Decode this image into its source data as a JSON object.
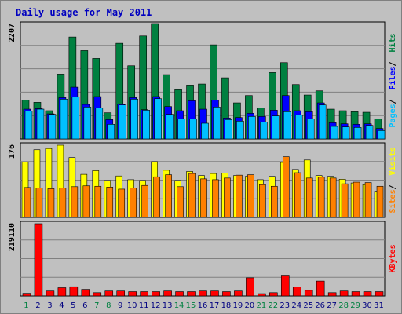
{
  "title": "Daily usage for May 2011",
  "colors": {
    "hits": "#008040",
    "files": "#0000ff",
    "pages": "#00c0ff",
    "visits": "#ffff00",
    "sites": "#ff8000",
    "kbytes": "#ff0000",
    "weekend_label": "#008040",
    "weekday_label": "#000080",
    "panel_bg": "#c0c0c0",
    "gridline": "#808080"
  },
  "chart_data": [
    {
      "type": "bar",
      "panel": "top",
      "max_label": "2207",
      "ylim": [
        0,
        2207
      ],
      "legend": [
        "Pages",
        "Files",
        "Hits"
      ],
      "categories": [
        "1",
        "2",
        "3",
        "4",
        "5",
        "6",
        "7",
        "8",
        "9",
        "10",
        "11",
        "12",
        "13",
        "14",
        "15",
        "16",
        "17",
        "18",
        "19",
        "20",
        "21",
        "22",
        "23",
        "24",
        "25",
        "26",
        "27",
        "28",
        "29",
        "30",
        "31"
      ],
      "series": [
        {
          "name": "Hits",
          "color": "#008040",
          "values": [
            740,
            700,
            540,
            1240,
            1950,
            1690,
            1540,
            500,
            1830,
            1400,
            1970,
            2207,
            1230,
            940,
            1030,
            1050,
            1800,
            1170,
            690,
            830,
            590,
            1270,
            1460,
            1040,
            840,
            920,
            570,
            540,
            520,
            510,
            380
          ]
        },
        {
          "name": "Files",
          "color": "#0000ff",
          "values": [
            570,
            580,
            480,
            790,
            990,
            660,
            810,
            370,
            670,
            790,
            560,
            810,
            620,
            540,
            730,
            570,
            740,
            400,
            410,
            490,
            430,
            550,
            830,
            540,
            520,
            690,
            310,
            290,
            280,
            290,
            200
          ]
        },
        {
          "name": "Pages",
          "color": "#00c0ff",
          "values": [
            530,
            570,
            470,
            760,
            800,
            610,
            590,
            280,
            650,
            760,
            550,
            770,
            470,
            380,
            380,
            300,
            610,
            370,
            340,
            430,
            320,
            440,
            520,
            460,
            380,
            650,
            240,
            230,
            220,
            260,
            160
          ]
        }
      ]
    },
    {
      "type": "bar",
      "panel": "middle",
      "max_label": "176",
      "ylim": [
        0,
        176
      ],
      "legend": [
        "Sites",
        "Visits"
      ],
      "categories": [
        "1",
        "2",
        "3",
        "4",
        "5",
        "6",
        "7",
        "8",
        "9",
        "10",
        "11",
        "12",
        "13",
        "14",
        "15",
        "16",
        "17",
        "18",
        "19",
        "20",
        "21",
        "22",
        "23",
        "24",
        "25",
        "26",
        "27",
        "28",
        "29",
        "30",
        "31"
      ],
      "series": [
        {
          "name": "Visits",
          "color": "#ffff00",
          "values": [
            135,
            165,
            168,
            176,
            146,
            105,
            114,
            90,
            101,
            92,
            90,
            136,
            115,
            90,
            112,
            102,
            107,
            108,
            102,
            100,
            92,
            100,
            134,
            117,
            140,
            102,
            100,
            93,
            84,
            80,
            64
          ]
        },
        {
          "name": "Sites",
          "color": "#ff8000",
          "values": [
            73,
            72,
            70,
            72,
            75,
            77,
            76,
            74,
            69,
            72,
            78,
            99,
            104,
            75,
            107,
            94,
            92,
            96,
            103,
            104,
            80,
            76,
            148,
            109,
            96,
            98,
            96,
            82,
            86,
            85,
            76
          ]
        }
      ]
    },
    {
      "type": "bar",
      "panel": "bottom",
      "max_label": "219110",
      "ylim": [
        0,
        219110
      ],
      "legend": [
        "KBytes"
      ],
      "categories": [
        "1",
        "2",
        "3",
        "4",
        "5",
        "6",
        "7",
        "8",
        "9",
        "10",
        "11",
        "12",
        "13",
        "14",
        "15",
        "16",
        "17",
        "18",
        "19",
        "20",
        "21",
        "22",
        "23",
        "24",
        "25",
        "26",
        "27",
        "28",
        "29",
        "30",
        "31"
      ],
      "series": [
        {
          "name": "KBytes",
          "color": "#ff0000",
          "values": [
            8000,
            219110,
            15000,
            25000,
            28000,
            20000,
            10000,
            15000,
            15000,
            13000,
            13000,
            13000,
            15000,
            13000,
            13000,
            15000,
            15000,
            13000,
            15000,
            55000,
            7000,
            10000,
            63000,
            27000,
            17000,
            45000,
            10000,
            15000,
            13000,
            13000,
            13000
          ]
        }
      ]
    }
  ],
  "x_labels": [
    "1",
    "2",
    "3",
    "4",
    "5",
    "6",
    "7",
    "8",
    "9",
    "10",
    "11",
    "12",
    "13",
    "14",
    "15",
    "16",
    "17",
    "18",
    "19",
    "20",
    "21",
    "22",
    "23",
    "24",
    "25",
    "26",
    "27",
    "28",
    "29",
    "30",
    "31"
  ],
  "weekend_days": [
    "1",
    "7",
    "8",
    "14",
    "15",
    "21",
    "22",
    "28",
    "29"
  ]
}
